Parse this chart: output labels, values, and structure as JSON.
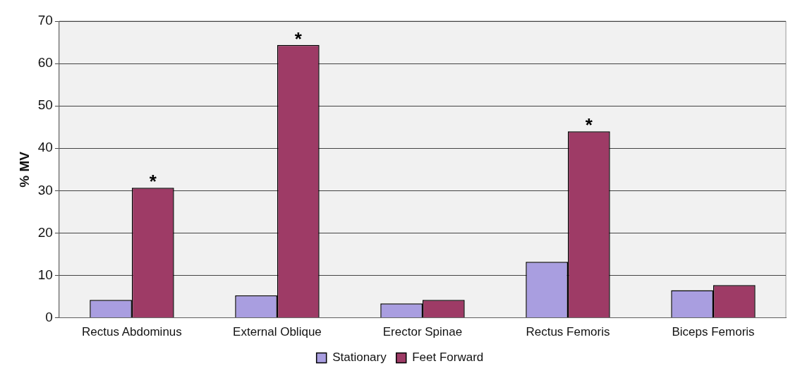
{
  "chart_data": {
    "type": "bar",
    "ylabel": "% MV",
    "categories": [
      "Rectus Abdominus",
      "External Oblique",
      "Erector Spinae",
      "Rectus Femoris",
      "Biceps Femoris"
    ],
    "series": [
      {
        "name": "Stationary",
        "color": "#a99ee0",
        "values": [
          4.2,
          5.3,
          3.4,
          13.2,
          6.5
        ]
      },
      {
        "name": "Feet Forward",
        "color": "#9e3b66",
        "values": [
          30.7,
          64.4,
          4.2,
          44.0,
          7.7
        ]
      }
    ],
    "ylim": [
      0,
      70
    ],
    "yticks": [
      0,
      10,
      20,
      30,
      40,
      50,
      60,
      70
    ],
    "grid": "y",
    "legend": "bottom",
    "annotations": [
      {
        "text": "*",
        "x": "Rectus Abdominus",
        "y": 30.7
      },
      {
        "text": "*",
        "x": "External Oblique",
        "y": 64.4
      },
      {
        "text": "*",
        "x": "Rectus Femoris",
        "y": 44.0
      }
    ]
  }
}
